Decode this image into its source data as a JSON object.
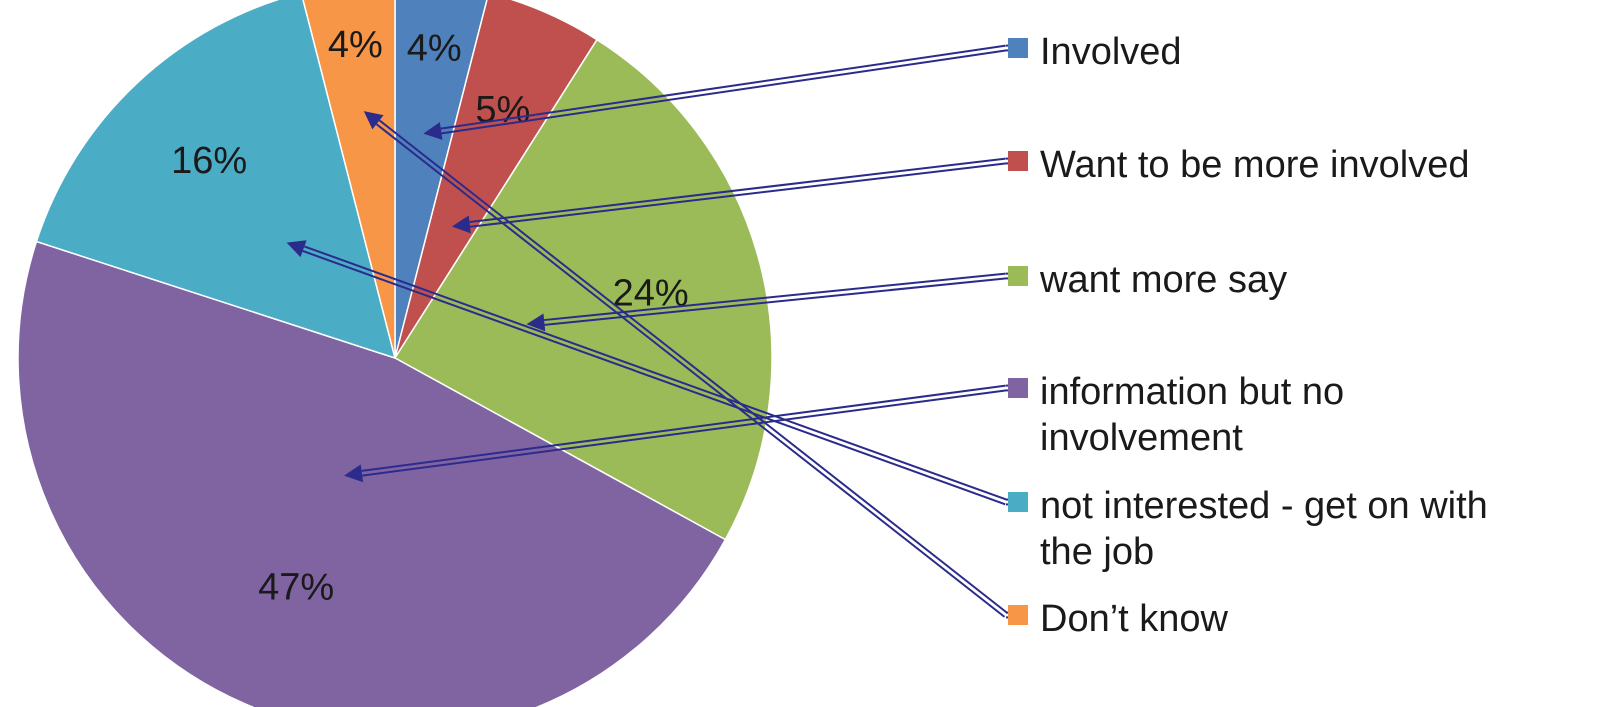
{
  "chart_data": {
    "type": "pie",
    "title": "",
    "categories": [
      "Involved",
      "Want to be more involved",
      "want more say",
      "information but no involvement",
      "not interested - get on with the job",
      "Don’t know"
    ],
    "values": [
      4,
      5,
      24,
      47,
      16,
      4
    ],
    "value_labels": [
      "4%",
      "5%",
      "24%",
      "47%",
      "16%",
      "4%"
    ],
    "colors": [
      "#4F81BD",
      "#C0504D",
      "#9BBB59",
      "#8064A2",
      "#4BACC6",
      "#F79646"
    ],
    "legend": {
      "placement": "right",
      "entries": [
        {
          "lines": [
            "Involved"
          ]
        },
        {
          "lines": [
            "Want to be more involved"
          ]
        },
        {
          "lines": [
            "want more say"
          ]
        },
        {
          "lines": [
            "information but no",
            "involvement"
          ]
        },
        {
          "lines": [
            "not interested - get on with",
            "the job"
          ]
        },
        {
          "lines": [
            "Don’t know"
          ]
        }
      ]
    },
    "annotations": "double-line arrows connect each legend entry to its pie slice",
    "arrow_color": "#2B2B8C"
  }
}
